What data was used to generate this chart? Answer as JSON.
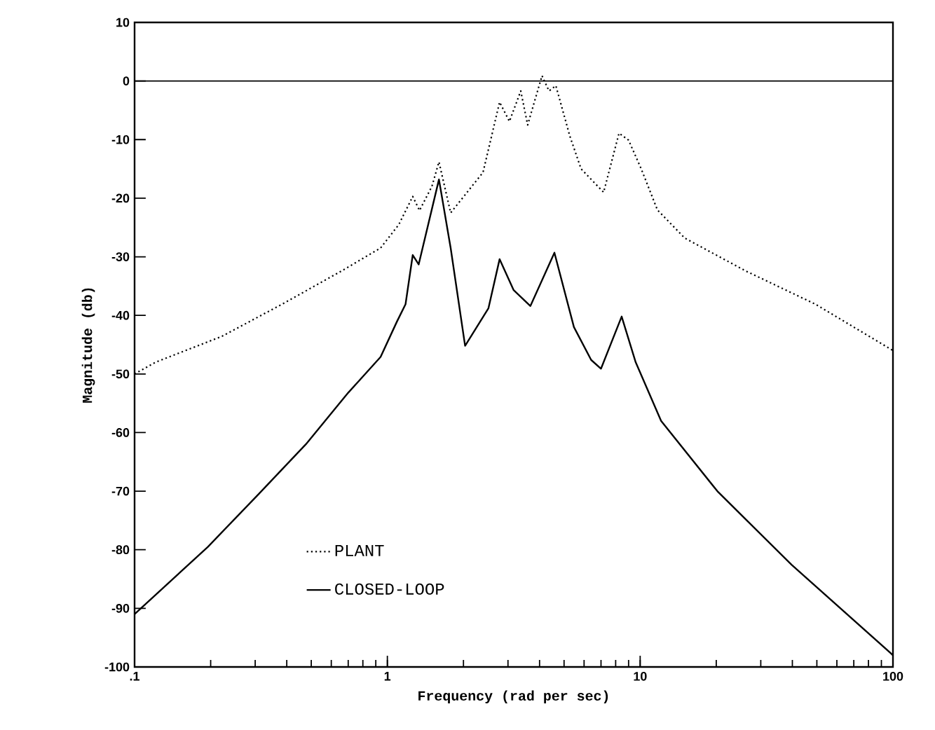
{
  "chart_data": {
    "type": "line",
    "xlabel": "Frequency (rad per sec)",
    "ylabel": "Magnitude (db)",
    "log": "x",
    "xlim": [
      0.1,
      100
    ],
    "ylim": [
      -100,
      10
    ],
    "xticks": [
      {
        "value": 0.1,
        "label": ".1"
      },
      1,
      10,
      100
    ],
    "yticks": [
      -100,
      -90,
      -80,
      -70,
      -60,
      -50,
      -40,
      -30,
      -20,
      -10,
      0,
      10
    ],
    "legend": "bottom left",
    "grid": false,
    "ref_lines": [
      {
        "axis": "y",
        "value": 0,
        "color": "#000000",
        "line_style": "solid"
      }
    ],
    "series": [
      {
        "name": "PLANT",
        "color": "#000000",
        "line_style": "dotted",
        "x": [
          0.1,
          0.121,
          0.221,
          0.383,
          0.66,
          0.94,
          1.11,
          1.26,
          1.34,
          1.5,
          1.6,
          1.78,
          2.39,
          2.78,
          3.04,
          3.37,
          3.59,
          4.09,
          4.36,
          4.64,
          5.27,
          5.84,
          7.17,
          8.25,
          9.0,
          10.1,
          11.7,
          15.0,
          26.1,
          49.4,
          100
        ],
        "values": [
          -50,
          -48,
          -43.6,
          -38.1,
          -32.4,
          -28.5,
          -24.5,
          -19.7,
          -22.1,
          -18,
          -13.8,
          -22.5,
          -15.6,
          -3.6,
          -6.9,
          -1.7,
          -7.5,
          0.9,
          -1.7,
          -0.8,
          -9.4,
          -15,
          -19,
          -8.9,
          -10.1,
          -15,
          -22,
          -26.8,
          -32.4,
          -38.1,
          -46
        ]
      },
      {
        "name": "CLOSED-LOOP",
        "color": "#000000",
        "line_style": "solid",
        "x": [
          0.1,
          0.195,
          0.308,
          0.476,
          0.7,
          0.94,
          1.09,
          1.18,
          1.26,
          1.33,
          1.6,
          1.78,
          2.03,
          2.51,
          2.78,
          3.16,
          3.68,
          4.58,
          5.47,
          6.4,
          7.0,
          8.45,
          9.6,
          12.1,
          20.2,
          39.8,
          100
        ],
        "values": [
          -91,
          -79.5,
          -70.6,
          -62,
          -53.2,
          -47.1,
          -41.1,
          -38.1,
          -29.7,
          -31.3,
          -16.8,
          -28.5,
          -45.2,
          -38.8,
          -30.4,
          -35.7,
          -38.4,
          -29.3,
          -42,
          -47.6,
          -49.1,
          -40.2,
          -48,
          -58,
          -70,
          -82.6,
          -98
        ]
      }
    ]
  }
}
